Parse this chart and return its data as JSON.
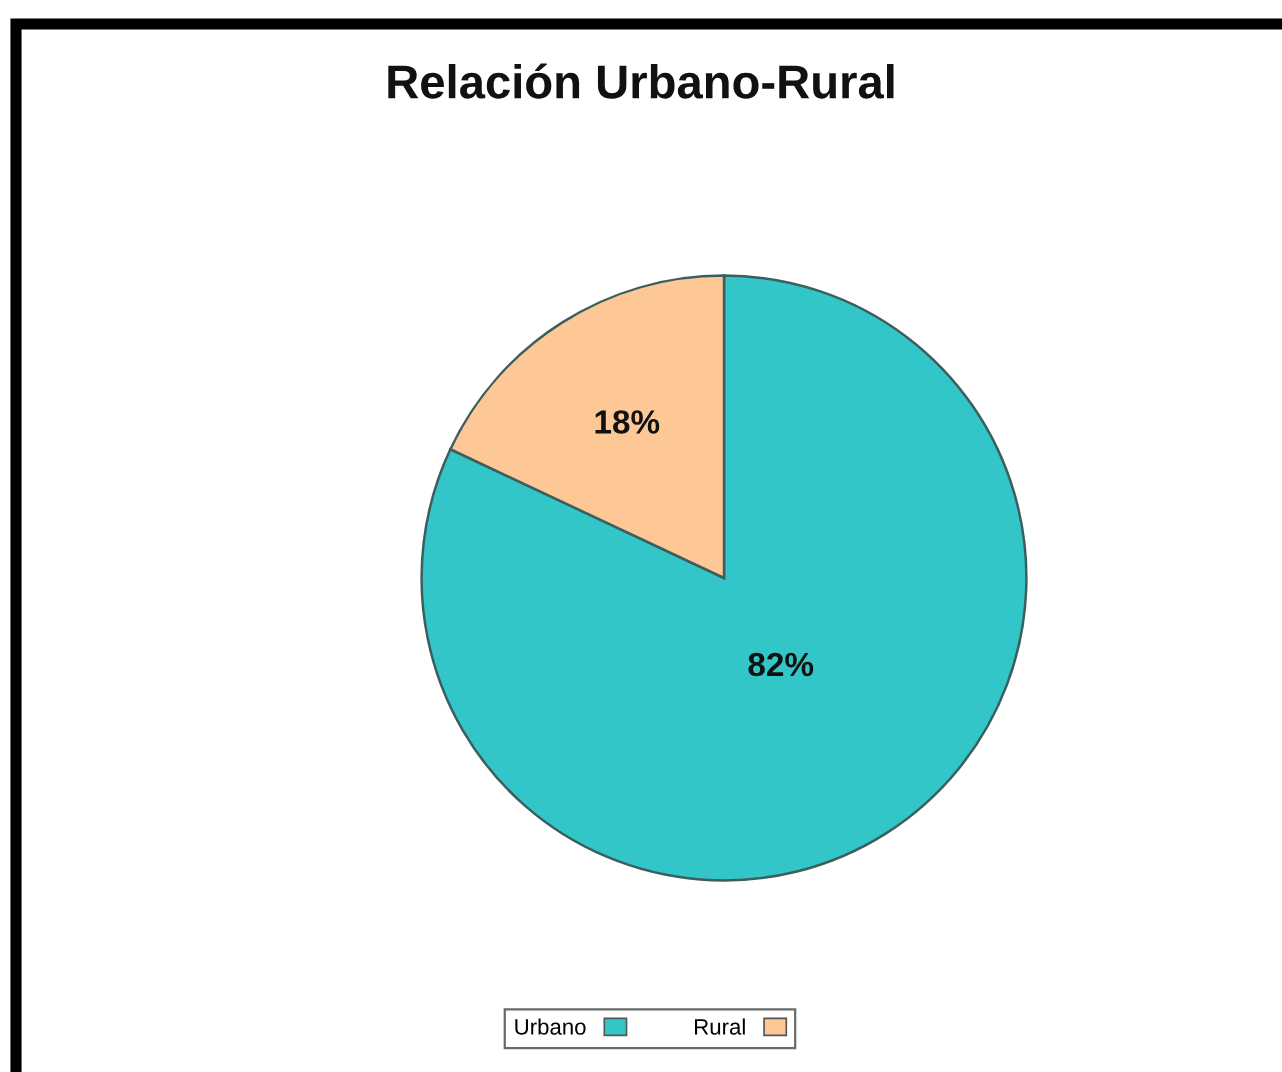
{
  "chart_data": {
    "type": "pie",
    "title": "Relación Urbano-Rural",
    "categories": [
      "Urbano",
      "Rural"
    ],
    "values": [
      82,
      18
    ],
    "value_labels": [
      "82%",
      "18%"
    ],
    "colors": [
      "#33c6c9",
      "#fdc896"
    ],
    "legend": "bottom"
  }
}
